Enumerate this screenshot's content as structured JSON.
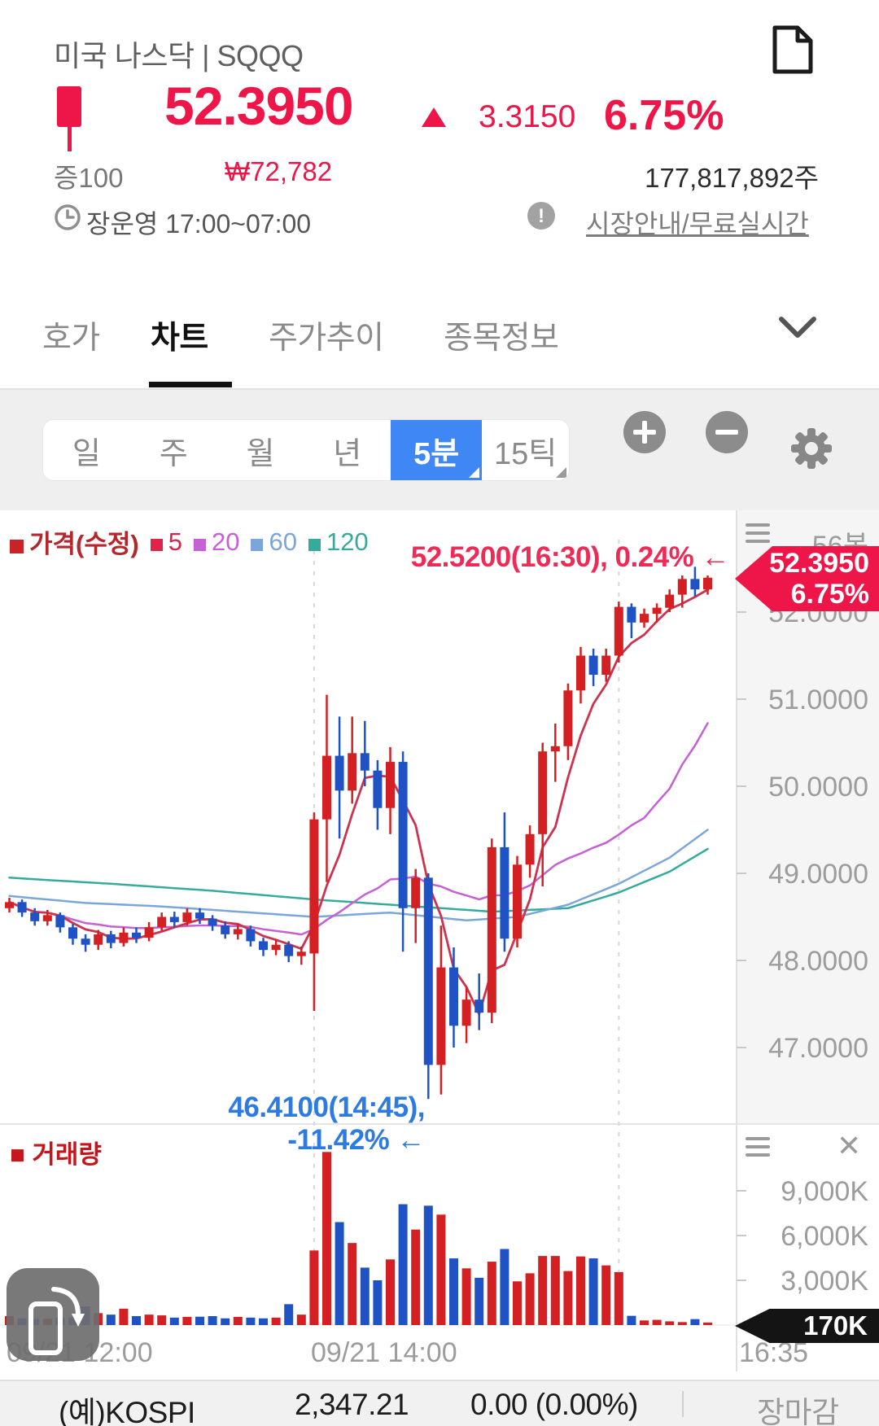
{
  "header": {
    "title": "미국 나스닥 | SQQQ",
    "price": "52.3950",
    "change": "3.3150",
    "change_pct": "6.75%",
    "category_badge": "증100",
    "krw_price": "₩72,782",
    "shares_volume": "177,817,892주",
    "market_hours": "장운영 17:00~07:00",
    "market_info_link": "시장안내/무료실시간"
  },
  "tabs": [
    {
      "label": "호가",
      "active": false
    },
    {
      "label": "차트",
      "active": true
    },
    {
      "label": "주가추이",
      "active": false
    },
    {
      "label": "종목정보",
      "active": false
    }
  ],
  "toolbar": {
    "periods": [
      {
        "label": "일"
      },
      {
        "label": "주"
      },
      {
        "label": "월"
      },
      {
        "label": "년"
      },
      {
        "label": "5분",
        "selected": true
      },
      {
        "label": "15틱"
      }
    ]
  },
  "chart": {
    "legend": {
      "price": "가격(수정)",
      "ma5": "5",
      "ma20": "20",
      "ma60": "60",
      "ma120": "120"
    },
    "bar_count_label": "56봉",
    "price_tag": {
      "price": "52.3950",
      "pct": "6.75%"
    },
    "annotation_high": "52.5200(16:30), 0.24% ←",
    "annotation_low": "46.4100(14:45), -11.42% ←",
    "y_ticks": [
      "52.0000",
      "51.0000",
      "50.0000",
      "49.0000",
      "48.0000",
      "47.0000"
    ],
    "volume_legend": "거래량",
    "volume_ticks": [
      "9,000K",
      "6,000K",
      "3,000K"
    ],
    "volume_tag": "170K",
    "x_labels": [
      "09/21 12:00",
      "09/21 14:00",
      "16:35"
    ]
  },
  "chart_data": {
    "type": "candlestick+volume",
    "interval_minutes": 5,
    "bar_count": 56,
    "start_time": "09/21 12:00",
    "end_time": "16:35",
    "high_marker": {
      "price": 52.52,
      "time": "16:30",
      "pct": "0.24%",
      "bar": 54
    },
    "low_marker": {
      "price": 46.41,
      "time": "14:45",
      "pct": "-11.42%",
      "bar": 33
    },
    "last_price": 52.395,
    "candles": [
      [
        48.6,
        48.72,
        48.55,
        48.67
      ],
      [
        48.67,
        48.7,
        48.5,
        48.55
      ],
      [
        48.55,
        48.6,
        48.4,
        48.45
      ],
      [
        48.45,
        48.58,
        48.4,
        48.52
      ],
      [
        48.52,
        48.55,
        48.32,
        48.38
      ],
      [
        48.38,
        48.42,
        48.18,
        48.25
      ],
      [
        48.25,
        48.3,
        48.1,
        48.18
      ],
      [
        48.18,
        48.35,
        48.12,
        48.3
      ],
      [
        48.3,
        48.34,
        48.14,
        48.2
      ],
      [
        48.2,
        48.38,
        48.16,
        48.32
      ],
      [
        48.32,
        48.38,
        48.2,
        48.26
      ],
      [
        48.26,
        48.44,
        48.22,
        48.38
      ],
      [
        48.38,
        48.55,
        48.34,
        48.5
      ],
      [
        48.5,
        48.56,
        48.38,
        48.44
      ],
      [
        48.44,
        48.6,
        48.4,
        48.55
      ],
      [
        48.55,
        48.6,
        48.42,
        48.48
      ],
      [
        48.48,
        48.52,
        48.34,
        48.4
      ],
      [
        48.4,
        48.45,
        48.25,
        48.3
      ],
      [
        48.3,
        48.42,
        48.24,
        48.36
      ],
      [
        48.36,
        48.4,
        48.16,
        48.22
      ],
      [
        48.22,
        48.26,
        48.05,
        48.12
      ],
      [
        48.12,
        48.24,
        48.06,
        48.18
      ],
      [
        48.18,
        48.22,
        47.98,
        48.05
      ],
      [
        48.05,
        48.16,
        47.95,
        48.1
      ],
      [
        48.08,
        49.7,
        47.42,
        49.62
      ],
      [
        49.62,
        51.05,
        48.9,
        50.35
      ],
      [
        50.35,
        50.8,
        49.4,
        49.95
      ],
      [
        49.95,
        50.8,
        49.8,
        50.38
      ],
      [
        50.38,
        50.75,
        50.0,
        50.18
      ],
      [
        50.18,
        50.3,
        49.5,
        49.75
      ],
      [
        49.75,
        50.45,
        49.45,
        50.28
      ],
      [
        50.28,
        50.4,
        48.1,
        48.6
      ],
      [
        48.6,
        49.05,
        48.2,
        48.95
      ],
      [
        48.95,
        49.0,
        46.41,
        46.8
      ],
      [
        46.8,
        48.4,
        46.46,
        47.92
      ],
      [
        47.92,
        48.15,
        47.0,
        47.25
      ],
      [
        47.25,
        47.7,
        47.05,
        47.55
      ],
      [
        47.55,
        47.85,
        47.2,
        47.4
      ],
      [
        47.4,
        49.4,
        47.28,
        49.3
      ],
      [
        49.3,
        49.7,
        48.1,
        48.25
      ],
      [
        48.25,
        49.2,
        48.15,
        49.1
      ],
      [
        49.1,
        49.55,
        48.95,
        49.45
      ],
      [
        49.45,
        50.5,
        48.85,
        50.4
      ],
      [
        50.4,
        50.72,
        50.05,
        50.46
      ],
      [
        50.46,
        51.18,
        50.3,
        51.1
      ],
      [
        51.1,
        51.6,
        50.95,
        51.5
      ],
      [
        51.5,
        51.58,
        51.15,
        51.28
      ],
      [
        51.28,
        51.58,
        51.2,
        51.5
      ],
      [
        51.5,
        52.12,
        51.42,
        52.06
      ],
      [
        52.06,
        52.1,
        51.7,
        51.88
      ],
      [
        51.88,
        52.04,
        51.82,
        51.98
      ],
      [
        51.98,
        52.1,
        51.88,
        52.05
      ],
      [
        52.05,
        52.26,
        52.0,
        52.2
      ],
      [
        52.2,
        52.42,
        52.05,
        52.38
      ],
      [
        52.38,
        52.52,
        52.18,
        52.26
      ],
      [
        52.26,
        52.42,
        52.2,
        52.395
      ]
    ],
    "volumes_k": [
      600,
      450,
      400,
      420,
      500,
      520,
      1250,
      800,
      700,
      1100,
      600,
      700,
      650,
      500,
      550,
      560,
      600,
      450,
      550,
      500,
      450,
      500,
      1400,
      700,
      5000,
      11600,
      6900,
      5500,
      3850,
      3000,
      4400,
      8100,
      6400,
      8000,
      7400,
      4470,
      3800,
      3170,
      4250,
      5100,
      2930,
      3470,
      4630,
      4630,
      3620,
      4600,
      4470,
      4000,
      3550,
      620,
      310,
      350,
      250,
      200,
      400,
      170
    ],
    "ma60_points": [
      [
        0,
        48.74
      ],
      [
        6,
        48.66
      ],
      [
        12,
        48.62
      ],
      [
        18,
        48.56
      ],
      [
        24,
        48.5
      ],
      [
        30,
        48.55
      ],
      [
        36,
        48.46
      ],
      [
        40,
        48.5
      ],
      [
        44,
        48.64
      ],
      [
        48,
        48.88
      ],
      [
        52,
        49.18
      ],
      [
        55,
        49.5
      ]
    ],
    "ma120_points": [
      [
        0,
        48.95
      ],
      [
        8,
        48.88
      ],
      [
        16,
        48.8
      ],
      [
        24,
        48.7
      ],
      [
        32,
        48.62
      ],
      [
        38,
        48.56
      ],
      [
        44,
        48.6
      ],
      [
        48,
        48.78
      ],
      [
        52,
        49.02
      ],
      [
        55,
        49.28
      ]
    ],
    "price_axis": {
      "tick_values": [
        52,
        51,
        50,
        49,
        48,
        47
      ],
      "min": 46.2,
      "max": 52.8
    },
    "volume_axis": {
      "tick_values_k": [
        9000,
        6000,
        3000
      ],
      "current_k": 170
    },
    "gridline_bars": [
      24,
      48
    ],
    "colors": {
      "up": "#d42022",
      "down": "#1f53c5",
      "ma5": "#cc3350",
      "ma20": "#c561d4",
      "ma60": "#7aa6da",
      "ma120": "#36ab9b",
      "accent_pink": "#ee1648",
      "annotation_blue": "#2d7be2",
      "tag_black": "#141414",
      "selected_blue": "#3f87f5"
    }
  },
  "bottom_bar": {
    "index_name": "(예)KOSPI",
    "index_value": "2,347.21",
    "index_change": "0.00 (0.00%)",
    "market_status": "장마감"
  }
}
